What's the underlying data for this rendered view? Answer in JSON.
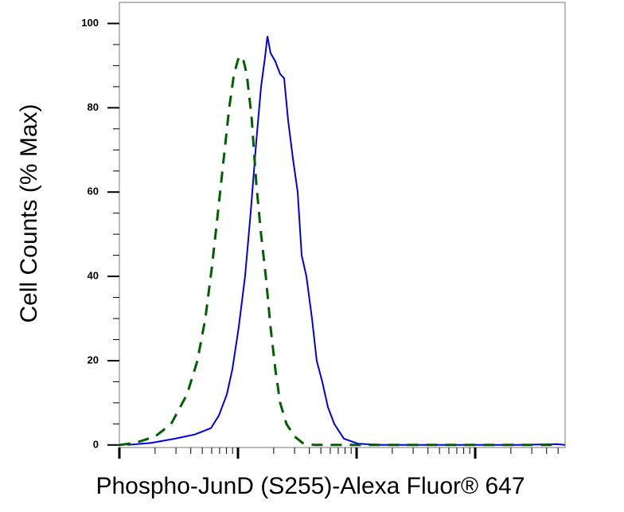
{
  "chart_data": {
    "type": "line",
    "x_label": "Phospho-JunD (S255)-Alexa Fluor® 647",
    "y_label": "Cell Counts (% Max)",
    "xscale": "log",
    "xlim": [
      10,
      57300
    ],
    "xticks": [
      10,
      100,
      1000,
      10000
    ],
    "xminorticks": [
      20,
      30,
      40,
      50,
      60,
      70,
      80,
      90,
      200,
      300,
      400,
      500,
      600,
      700,
      800,
      900,
      2000,
      3000,
      4000,
      5000,
      6000,
      7000,
      8000,
      9000,
      20000,
      30000,
      40000,
      50000
    ],
    "ylim": [
      -0.6,
      105
    ],
    "yticks": [
      0,
      20,
      40,
      60,
      80,
      100
    ],
    "yminorticks": [
      5,
      10,
      15,
      25,
      30,
      35,
      45,
      50,
      55,
      65,
      70,
      75,
      85,
      90,
      95
    ],
    "series": [
      {
        "color": "#0000e0",
        "dash": "solid",
        "x": [
          11.67,
          18.5,
          29.5,
          43.4,
          59.2,
          69.0,
          80.5,
          89.8,
          101.6,
          114.8,
          127.9,
          142.6,
          156.6,
          169.0,
          177.0,
          188.2,
          206.5,
          226.8,
          244.9,
          264.8,
          290.4,
          318.6,
          344.3,
          377.6,
          420.7,
          461.3,
          514.0,
          572.8,
          648.6,
          781.6,
          1030.6,
          1639,
          4840,
          22700,
          49100,
          57000
        ],
        "values": [
          0,
          0.5,
          1.5,
          2.5,
          4,
          7,
          12,
          18,
          28,
          40,
          55,
          72,
          85,
          92,
          97,
          93,
          91,
          88,
          87,
          77,
          68,
          60,
          45,
          40,
          30,
          20,
          15,
          9,
          5,
          1.5,
          0.3,
          0,
          0,
          0,
          0.2,
          0
        ]
      },
      {
        "color": "#006000",
        "dash": "dashed",
        "x": [
          10,
          13.6,
          20.0,
          27.3,
          37.2,
          45.5,
          53.1,
          60.1,
          65.9,
          74.5,
          84.4,
          92.5,
          101.6,
          109.6,
          118.5,
          130.0,
          142.6,
          156.6,
          171.8,
          188.2,
          206.5,
          226.8,
          256.4,
          299.9,
          349.9,
          440.6,
          648.6,
          2233,
          49100
        ],
        "values": [
          0,
          0.5,
          2,
          5,
          12,
          20,
          30,
          42,
          52,
          66,
          80,
          88,
          92,
          92,
          88,
          78,
          62,
          50,
          40,
          28,
          18,
          10,
          5,
          2,
          0.5,
          0,
          0,
          0,
          0
        ]
      }
    ]
  }
}
